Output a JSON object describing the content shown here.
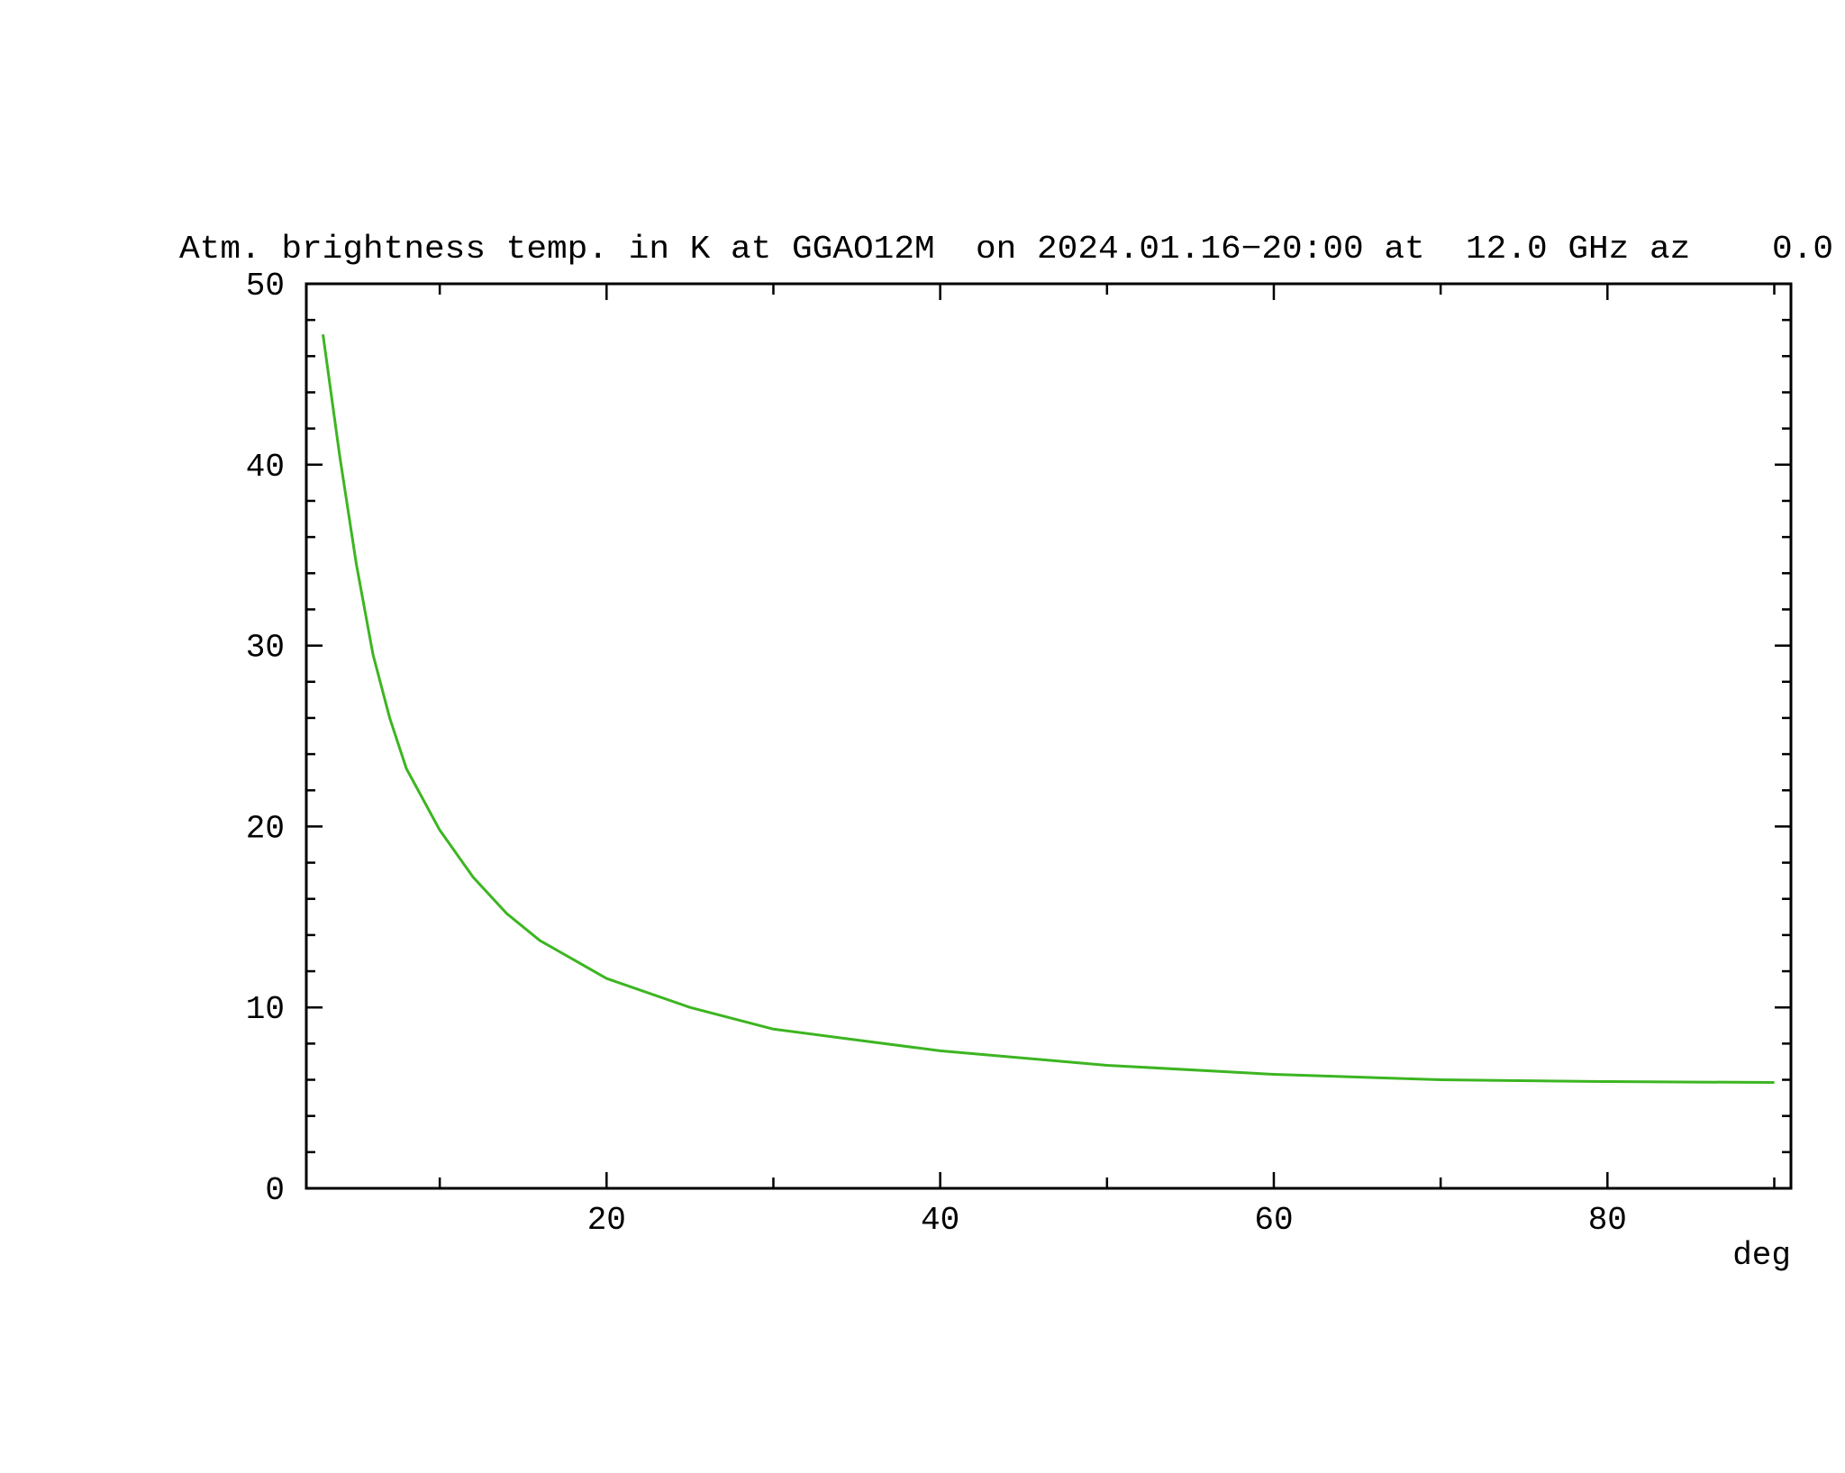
{
  "chart_data": {
    "type": "line",
    "title": "Atm. brightness temp. in K at GGAO12M  on 2024.01.16−20:00 at  12.0 GHz az    0.0",
    "x_label": "deg",
    "series": [
      {
        "color": "#3cb521",
        "x": [
          3,
          4,
          5,
          6,
          7,
          8,
          10,
          12,
          14,
          16,
          20,
          25,
          30,
          35,
          40,
          50,
          60,
          70,
          80,
          90
        ],
        "values": [
          47.2,
          40.5,
          34.5,
          29.5,
          26,
          23.2,
          19.8,
          17.2,
          15.2,
          13.7,
          11.6,
          10.0,
          8.8,
          8.2,
          7.6,
          6.8,
          6.3,
          6.0,
          5.9,
          5.85
        ]
      }
    ],
    "xlim": [
      2,
      91
    ],
    "ylim": [
      0,
      50
    ],
    "xticks": [
      20,
      40,
      60,
      80
    ],
    "yticks": [
      0,
      10,
      20,
      30,
      40,
      50
    ],
    "x_minor_ticks": [
      10,
      30,
      50,
      70,
      90
    ],
    "y_minor_ticks": [
      2,
      4,
      6,
      8,
      12,
      14,
      16,
      18,
      22,
      24,
      26,
      28,
      32,
      34,
      36,
      38,
      42,
      44,
      46,
      48
    ]
  }
}
